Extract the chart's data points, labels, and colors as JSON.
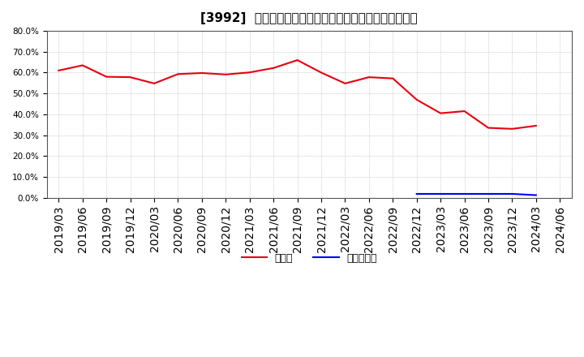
{
  "title": "[3992]  現頃金、有利子負債の総資産に対する比率の推移",
  "cash_dates": [
    "2019/03",
    "2019/06",
    "2019/09",
    "2019/12",
    "2020/03",
    "2020/06",
    "2020/09",
    "2020/12",
    "2021/03",
    "2021/06",
    "2021/09",
    "2021/12",
    "2022/03",
    "2022/06",
    "2022/09",
    "2022/12",
    "2023/03",
    "2023/06",
    "2023/09",
    "2023/12",
    "2024/03"
  ],
  "cash_values": [
    0.61,
    0.635,
    0.58,
    0.578,
    0.548,
    0.593,
    0.598,
    0.591,
    0.601,
    0.622,
    0.66,
    0.6,
    0.548,
    0.578,
    0.572,
    0.47,
    0.405,
    0.415,
    0.335,
    0.33,
    0.345
  ],
  "debt_dates": [
    "2022/12",
    "2023/03",
    "2023/06",
    "2023/09",
    "2023/12",
    "2024/03"
  ],
  "debt_values": [
    0.018,
    0.018,
    0.018,
    0.018,
    0.018,
    0.012
  ],
  "cash_color": "#e8000d",
  "debt_color": "#0000ff",
  "bg_color": "#ffffff",
  "grid_color": "#aaaaaa",
  "ylim": [
    0.0,
    0.8
  ],
  "yticks": [
    0.0,
    0.1,
    0.2,
    0.3,
    0.4,
    0.5,
    0.6,
    0.7,
    0.8
  ],
  "legend_cash": "現頃金",
  "legend_debt": "有利子負債",
  "title_fontsize": 11,
  "axis_fontsize": 7.5,
  "legend_fontsize": 9
}
